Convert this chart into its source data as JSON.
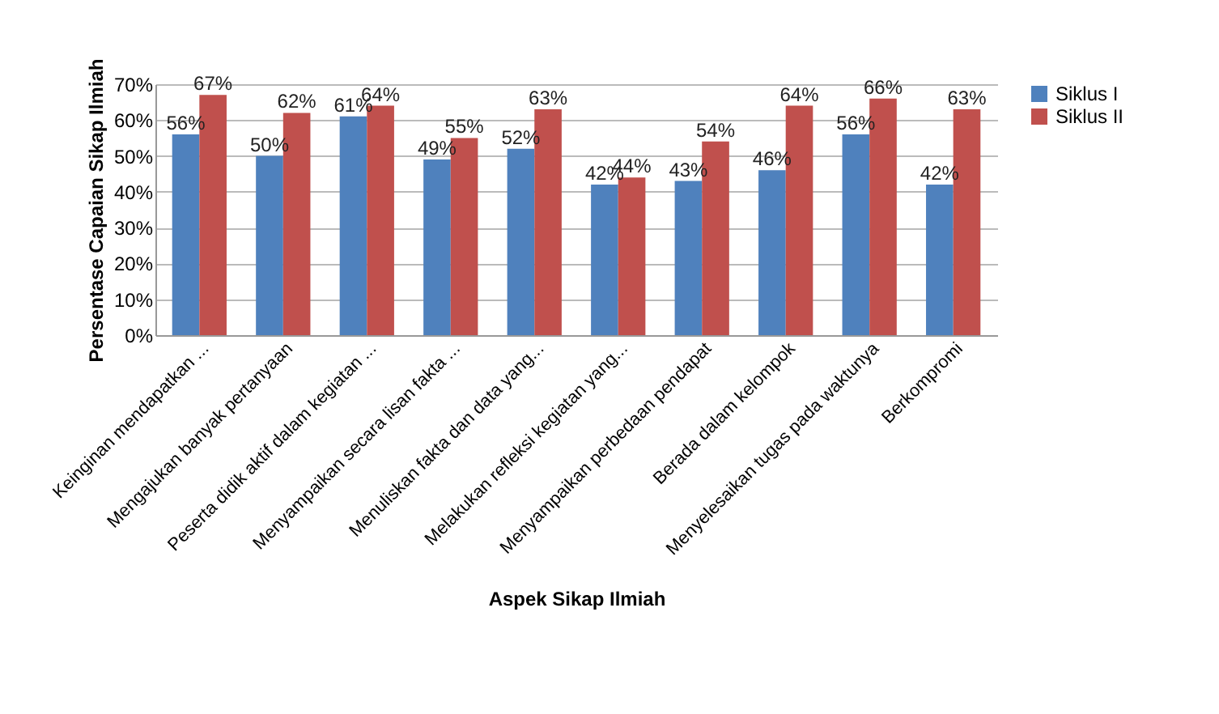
{
  "chart_data": {
    "type": "bar",
    "xlabel": "Aspek Sikap Ilmiah",
    "ylabel": "Persentase Capaian Sikap Ilmiah",
    "categories": [
      "Keinginan mendapatkan ...",
      "Mengajukan banyak pertanyaan",
      "Peserta didik aktif dalam kegiatan ...",
      "Menyampaikan secara lisan fakta ...",
      "Menuliskan fakta dan data yang...",
      "Melakukan refleksi kegiatan yang...",
      "Menyampaikan perbedaan pendapat",
      "Berada dalam kelompok",
      "Menyelesaikan tugas pada waktunya",
      "Berkompromi"
    ],
    "series": [
      {
        "name": "Siklus I",
        "color": "#4f81bd",
        "values": [
          56,
          50,
          61,
          49,
          52,
          42,
          43,
          46,
          56,
          42
        ],
        "value_labels": [
          "56%",
          "50%",
          "61%",
          "49%",
          "52%",
          "42%",
          "43%",
          "46%",
          "56%",
          "42%"
        ]
      },
      {
        "name": "Siklus II",
        "color": "#c0504d",
        "values": [
          67,
          62,
          64,
          55,
          63,
          44,
          54,
          64,
          66,
          63
        ],
        "value_labels": [
          "67%",
          "62%",
          "64%",
          "55%",
          "63%",
          "44%",
          "54%",
          "64%",
          "66%",
          "63%"
        ]
      }
    ],
    "ylim": [
      0,
      70
    ],
    "yticks": [
      {
        "value": 0,
        "label": "0%"
      },
      {
        "value": 10,
        "label": "10%"
      },
      {
        "value": 20,
        "label": "20%"
      },
      {
        "value": 30,
        "label": "30%"
      },
      {
        "value": 40,
        "label": "40%"
      },
      {
        "value": 50,
        "label": "50%"
      },
      {
        "value": 60,
        "label": "60%"
      },
      {
        "value": 70,
        "label": "70%"
      }
    ],
    "grid": "y",
    "legend": "right"
  }
}
